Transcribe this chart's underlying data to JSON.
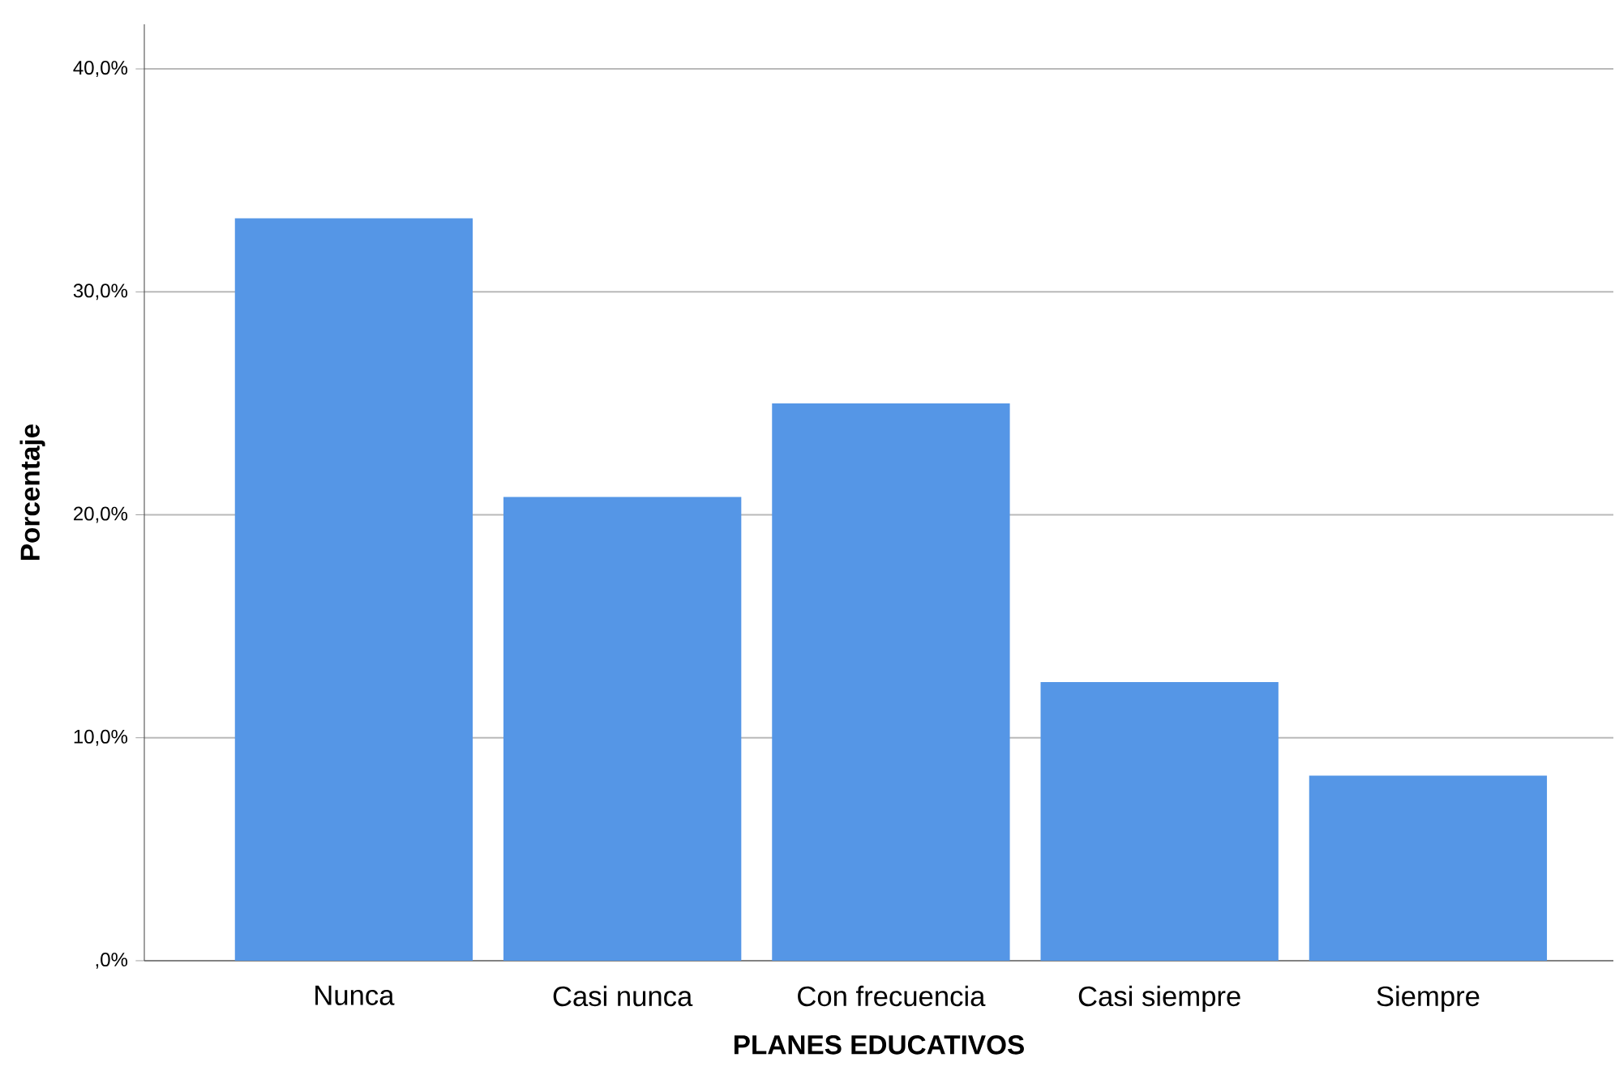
{
  "chart_data": {
    "type": "bar",
    "xlabel": "PLANES EDUCATIVOS",
    "ylabel": "Porcentaje",
    "categories": [
      "Nunca",
      "Casi nunca",
      "Con frecuencia",
      "Casi siempre",
      "Siempre"
    ],
    "values": [
      33.3,
      20.8,
      25.0,
      12.5,
      8.3
    ],
    "color": "#5596e6",
    "ylim": [
      0,
      42
    ],
    "yticks": [
      {
        "value": 0,
        "label": ",0%"
      },
      {
        "value": 10,
        "label": "10,0%"
      },
      {
        "value": 20,
        "label": "20,0%"
      },
      {
        "value": 30,
        "label": "30,0%"
      },
      {
        "value": 40,
        "label": "40,0%"
      }
    ],
    "grid": "y"
  }
}
